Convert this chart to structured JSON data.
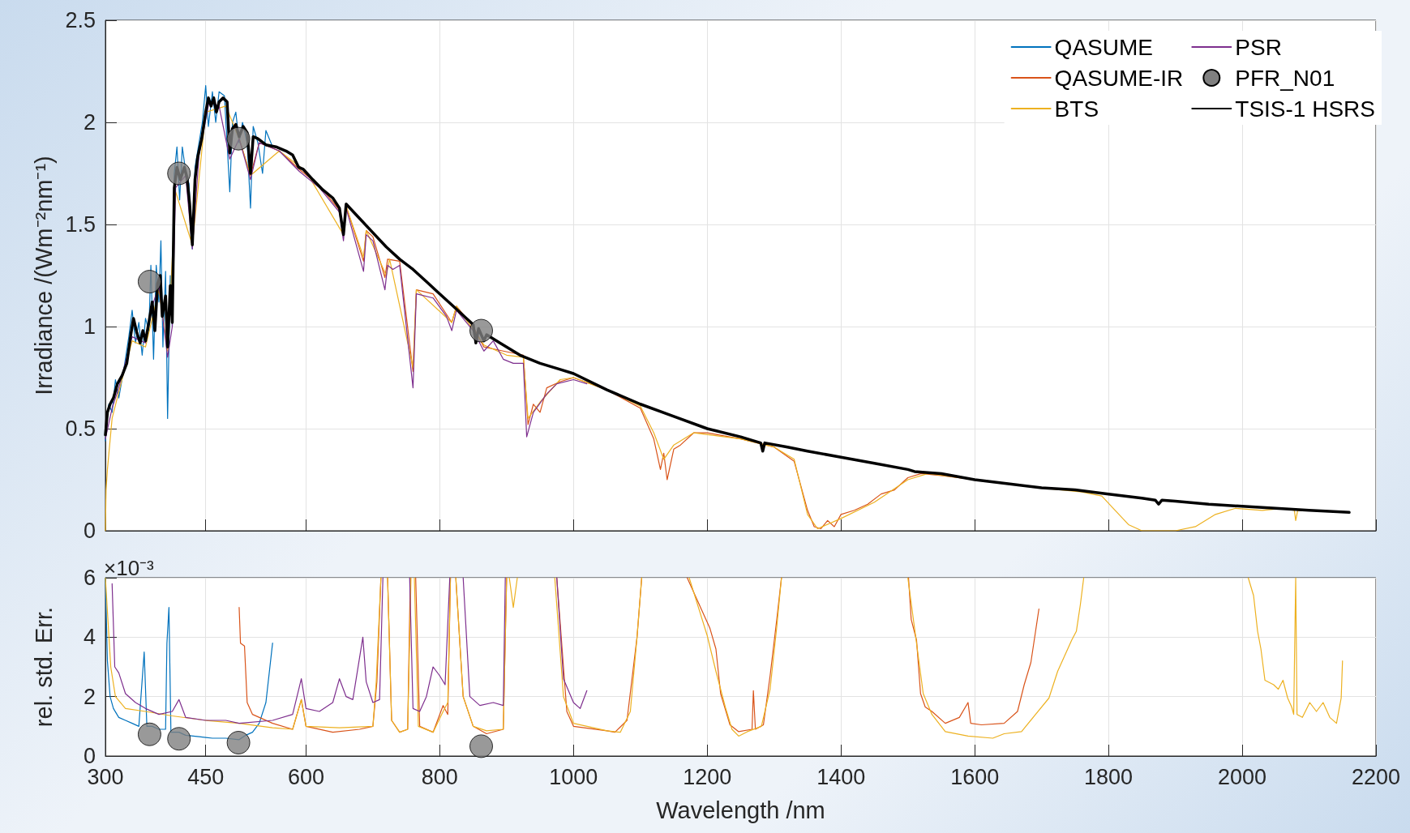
{
  "chart_data": [
    {
      "type": "line",
      "ylabel": "Irradiance /(Wm⁻²nm⁻¹)",
      "xlim": [
        300,
        2200
      ],
      "xticks": [
        300,
        450,
        600,
        800,
        1000,
        1200,
        1400,
        1600,
        1800,
        2000,
        2200
      ],
      "ylim": [
        0,
        2.5
      ],
      "yticks": [
        0,
        0.5,
        1,
        1.5,
        2,
        2.5
      ],
      "tick_labels": "y",
      "grid": true,
      "legend": "top right",
      "marker": "none",
      "series": [
        {
          "name": "QASUME",
          "color": "#0072bd",
          "x": [
            300,
            305,
            310,
            315,
            320,
            328,
            335,
            340,
            345,
            350,
            355,
            360,
            365,
            368,
            372,
            376,
            380,
            383,
            386,
            390,
            393,
            397,
            400,
            403,
            407,
            411,
            415,
            420,
            425,
            430,
            434,
            440,
            445,
            450,
            454,
            460,
            465,
            470,
            478,
            486,
            490,
            495,
            500,
            505,
            512,
            517,
            521,
            528,
            535,
            540,
            550
          ],
          "values": [
            0.44,
            0.62,
            0.58,
            0.74,
            0.65,
            0.8,
            0.95,
            1.08,
            0.92,
            1.02,
            0.86,
            1.04,
            0.98,
            1.3,
            0.84,
            1.3,
            1.12,
            1.42,
            0.9,
            1.27,
            0.55,
            1.25,
            1.0,
            1.75,
            1.88,
            1.62,
            1.88,
            1.76,
            1.7,
            1.38,
            1.78,
            1.9,
            2.0,
            2.18,
            1.98,
            2.15,
            2.0,
            2.15,
            2.13,
            1.66,
            2.0,
            2.05,
            1.9,
            2.0,
            1.9,
            1.58,
            1.98,
            1.9,
            1.75,
            1.96,
            1.88
          ]
        },
        {
          "name": "QASUME-IR",
          "color": "#d95319",
          "x": [
            500,
            517,
            530,
            560,
            590,
            620,
            650,
            656,
            660,
            686,
            690,
            700,
            718,
            722,
            740,
            760,
            765,
            790,
            818,
            825,
            850,
            866,
            895,
            925,
            932,
            940,
            950,
            960,
            980,
            1000,
            1050,
            1100,
            1120,
            1130,
            1135,
            1140,
            1150,
            1160,
            1180,
            1200,
            1250,
            1300,
            1330,
            1350,
            1360,
            1370,
            1380,
            1390,
            1400,
            1420,
            1440,
            1460,
            1480,
            1500,
            1520,
            1550,
            1600
          ],
          "values": [
            1.92,
            1.74,
            1.9,
            1.86,
            1.77,
            1.69,
            1.57,
            1.45,
            1.59,
            1.32,
            1.47,
            1.44,
            1.24,
            1.33,
            1.32,
            0.78,
            1.18,
            1.16,
            1.02,
            1.1,
            1.0,
            0.9,
            0.88,
            0.86,
            0.52,
            0.62,
            0.58,
            0.7,
            0.73,
            0.75,
            0.69,
            0.6,
            0.45,
            0.3,
            0.38,
            0.25,
            0.4,
            0.42,
            0.48,
            0.48,
            0.45,
            0.41,
            0.34,
            0.1,
            0.02,
            0.01,
            0.05,
            0.02,
            0.08,
            0.1,
            0.13,
            0.18,
            0.2,
            0.26,
            0.28,
            0.27,
            0.25
          ]
        },
        {
          "name": "BTS",
          "color": "#edb120",
          "x": [
            300,
            301,
            303,
            310,
            320,
            340,
            360,
            380,
            393,
            405,
            430,
            450,
            480,
            500,
            517,
            560,
            600,
            656,
            660,
            686,
            690,
            720,
            725,
            760,
            765,
            818,
            825,
            866,
            900,
            925,
            932,
            950,
            980,
            1000,
            1050,
            1100,
            1120,
            1135,
            1150,
            1180,
            1250,
            1300,
            1330,
            1350,
            1365,
            1400,
            1450,
            1500,
            1530,
            1600,
            1700,
            1760,
            1790,
            1810,
            1830,
            1850,
            1900,
            1930,
            1960,
            1990,
            2030,
            2060,
            2078,
            2080,
            2083,
            2120,
            2150
          ],
          "values": [
            0.0,
            0.2,
            0.3,
            0.55,
            0.68,
            0.93,
            0.9,
            1.18,
            0.88,
            1.66,
            1.4,
            2.05,
            2.08,
            1.92,
            1.74,
            1.86,
            1.76,
            1.45,
            1.59,
            1.34,
            1.47,
            1.25,
            1.33,
            0.8,
            1.18,
            1.02,
            1.1,
            0.91,
            0.86,
            0.85,
            0.55,
            0.63,
            0.74,
            0.75,
            0.69,
            0.61,
            0.48,
            0.35,
            0.42,
            0.48,
            0.45,
            0.41,
            0.35,
            0.08,
            0.01,
            0.06,
            0.14,
            0.25,
            0.28,
            0.25,
            0.21,
            0.19,
            0.17,
            0.1,
            0.03,
            0.0,
            0.0,
            0.02,
            0.08,
            0.11,
            0.1,
            0.11,
            0.1,
            0.05,
            0.1,
            0.1,
            0.09
          ]
        },
        {
          "name": "PSR",
          "color": "#7e2f8e",
          "x": [
            300,
            310,
            320,
            340,
            360,
            370,
            380,
            393,
            400,
            405,
            420,
            430,
            440,
            455,
            470,
            486,
            500,
            517,
            530,
            560,
            590,
            620,
            650,
            656,
            660,
            686,
            690,
            700,
            718,
            722,
            730,
            740,
            760,
            765,
            790,
            810,
            818,
            825,
            850,
            866,
            880,
            895,
            910,
            925,
            930,
            940,
            960,
            975,
            1000,
            1020
          ],
          "values": [
            0.45,
            0.6,
            0.7,
            0.95,
            0.92,
            1.1,
            1.2,
            0.85,
            1.0,
            1.68,
            1.74,
            1.38,
            1.84,
            2.1,
            2.08,
            1.82,
            1.92,
            1.72,
            1.9,
            1.86,
            1.76,
            1.68,
            1.56,
            1.42,
            1.58,
            1.27,
            1.45,
            1.42,
            1.18,
            1.3,
            1.28,
            1.3,
            0.7,
            1.16,
            1.14,
            1.05,
            0.98,
            1.08,
            0.98,
            0.88,
            0.93,
            0.84,
            0.82,
            0.82,
            0.46,
            0.58,
            0.67,
            0.72,
            0.74,
            0.72
          ]
        },
        {
          "name": "PFR_N01",
          "type": "scatter",
          "marker": "circle",
          "color": "#808080",
          "x": [
            366,
            410,
            499,
            862
          ],
          "values": [
            1.22,
            1.75,
            1.92,
            0.98
          ]
        },
        {
          "name": "TSIS-1 HSRS",
          "color": "#000000",
          "x": [
            300,
            303,
            307,
            312,
            318,
            325,
            332,
            338,
            342,
            347,
            352,
            356,
            360,
            365,
            370,
            374,
            378,
            382,
            385,
            390,
            393,
            397,
            400,
            403,
            407,
            412,
            418,
            422,
            426,
            430,
            434,
            438,
            444,
            450,
            454,
            458,
            462,
            466,
            470,
            476,
            482,
            486,
            490,
            495,
            500,
            506,
            512,
            517,
            521,
            528,
            540,
            555,
            570,
            580,
            589,
            596,
            610,
            625,
            640,
            650,
            656,
            660,
            680,
            700,
            720,
            740,
            760,
            780,
            800,
            820,
            840,
            850,
            854,
            858,
            866,
            870,
            890,
            920,
            950,
            980,
            1000,
            1050,
            1100,
            1150,
            1200,
            1250,
            1280,
            1283,
            1286,
            1320,
            1350,
            1400,
            1450,
            1500,
            1510,
            1550,
            1600,
            1650,
            1700,
            1750,
            1800,
            1850,
            1870,
            1875,
            1880,
            1900,
            1950,
            2000,
            2050,
            2100,
            2160
          ],
          "values": [
            0.47,
            0.58,
            0.62,
            0.65,
            0.72,
            0.76,
            0.82,
            0.96,
            1.04,
            0.97,
            0.92,
            0.98,
            0.93,
            1.02,
            1.12,
            0.98,
            1.21,
            1.25,
            1.05,
            1.15,
            0.9,
            1.2,
            1.02,
            1.68,
            1.78,
            1.72,
            1.78,
            1.73,
            1.6,
            1.4,
            1.72,
            1.83,
            1.92,
            2.05,
            2.12,
            2.08,
            2.12,
            2.05,
            2.1,
            2.12,
            2.1,
            1.85,
            1.97,
            1.99,
            1.93,
            1.98,
            1.95,
            1.75,
            1.93,
            1.92,
            1.89,
            1.88,
            1.86,
            1.84,
            1.78,
            1.77,
            1.72,
            1.67,
            1.63,
            1.58,
            1.45,
            1.6,
            1.53,
            1.46,
            1.39,
            1.33,
            1.28,
            1.22,
            1.16,
            1.1,
            1.04,
            1.01,
            0.92,
            0.99,
            0.93,
            0.96,
            0.92,
            0.86,
            0.82,
            0.79,
            0.77,
            0.69,
            0.62,
            0.56,
            0.5,
            0.46,
            0.43,
            0.39,
            0.43,
            0.41,
            0.39,
            0.36,
            0.33,
            0.3,
            0.29,
            0.28,
            0.25,
            0.23,
            0.21,
            0.2,
            0.18,
            0.16,
            0.15,
            0.13,
            0.15,
            0.145,
            0.13,
            0.12,
            0.11,
            0.1,
            0.09
          ]
        }
      ]
    },
    {
      "type": "line",
      "xlabel": "Wavelength /nm",
      "ylabel": "rel. std. Err.",
      "annotations": [
        "×10⁻³"
      ],
      "xlim": [
        300,
        2200
      ],
      "xticks": [
        300,
        450,
        600,
        800,
        1000,
        1200,
        1400,
        1600,
        1800,
        2000,
        2200
      ],
      "ylim": [
        0,
        6
      ],
      "yticks": [
        0,
        2,
        4,
        6
      ],
      "grid": true,
      "marker": "none",
      "series": [
        {
          "color": "#0072bd",
          "x": [
            300,
            303,
            307,
            312,
            320,
            330,
            340,
            350,
            358,
            362,
            370,
            380,
            390,
            392,
            395,
            398,
            410,
            420,
            440,
            460,
            480,
            500,
            510,
            520,
            530,
            540,
            545,
            550
          ],
          "values": [
            6,
            3.2,
            2.0,
            1.6,
            1.3,
            1.2,
            1.1,
            1.0,
            3.5,
            1.0,
            1.0,
            0.9,
            0.9,
            3.8,
            5.0,
            0.8,
            0.8,
            0.7,
            0.65,
            0.6,
            0.6,
            0.55,
            0.7,
            0.8,
            1.1,
            1.8,
            2.8,
            3.8
          ]
        },
        {
          "color": "#d95319",
          "x": [
            500,
            502,
            508,
            512,
            520,
            550,
            580,
            593,
            600,
            640,
            680,
            700,
            706,
            712,
            715,
            722,
            728,
            740,
            752,
            756,
            758,
            764,
            770,
            790,
            805,
            812,
            816,
            818,
            824,
            835,
            850,
            870,
            895,
            900,
            902,
            975,
            990,
            1000,
            1050,
            1062,
            1080,
            1095,
            1102,
            1104,
            1170,
            1204,
            1213,
            1220,
            1234,
            1247,
            1267,
            1269,
            1272,
            1284,
            1294,
            1304,
            1311,
            1313,
            1501,
            1505,
            1513,
            1519,
            1526,
            1536,
            1556,
            1577,
            1590,
            1594,
            1610,
            1644,
            1664,
            1674,
            1684,
            1691,
            1696
          ],
          "values": [
            5.0,
            3.8,
            3.7,
            1.8,
            1.4,
            1.1,
            0.9,
            1.9,
            1.0,
            0.8,
            0.9,
            1.0,
            2.5,
            6,
            null,
            6,
            1.2,
            0.8,
            0.9,
            6,
            null,
            6,
            1.0,
            0.8,
            1.7,
            1.4,
            6,
            null,
            6,
            2.0,
            1.0,
            0.75,
            0.9,
            6,
            null,
            6,
            1.5,
            1.0,
            0.85,
            0.8,
            1.2,
            4,
            6,
            null,
            6,
            4.3,
            3.6,
            2.1,
            1.05,
            0.82,
            0.9,
            2.2,
            0.9,
            1.05,
            2.7,
            4.6,
            6,
            null,
            6,
            4.6,
            3.9,
            2.1,
            1.65,
            1.5,
            1.1,
            1.3,
            1.8,
            1.1,
            1.05,
            1.1,
            1.5,
            2.4,
            3.15,
            4.2,
            4.95
          ]
        },
        {
          "color": "#edb120",
          "x": [
            300,
            308,
            315,
            330,
            360,
            400,
            450,
            500,
            550,
            580,
            593,
            600,
            650,
            700,
            705,
            712,
            715,
            722,
            728,
            740,
            752,
            757,
            759,
            762,
            768,
            790,
            805,
            812,
            816,
            818,
            824,
            835,
            850,
            870,
            895,
            900,
            902,
            904,
            910,
            916,
            918,
            972,
            985,
            1000,
            1050,
            1070,
            1085,
            1095,
            1102,
            1104,
            1173,
            1200,
            1213,
            1227,
            1237,
            1247,
            1260,
            1281,
            1294,
            1304,
            1311,
            1313,
            1500,
            1523,
            1536,
            1556,
            1590,
            1627,
            1644,
            1670,
            1691,
            1711,
            1724,
            1745,
            1752,
            1758,
            1763,
            1765,
            2009,
            2017,
            2023,
            2028,
            2034,
            2047,
            2054,
            2061,
            2068,
            2074,
            2077,
            2080,
            2082,
            2090,
            2101,
            2111,
            2121,
            2131,
            2141,
            2148,
            2150
          ],
          "values": [
            6,
            3.0,
            2.0,
            1.6,
            1.5,
            1.35,
            1.2,
            1.1,
            0.95,
            0.9,
            1.9,
            1.0,
            0.95,
            1.0,
            2.5,
            6,
            null,
            6,
            1.2,
            0.8,
            0.9,
            6,
            null,
            6,
            1.0,
            0.8,
            1.5,
            1.8,
            6,
            null,
            6,
            2.0,
            1.0,
            0.85,
            0.9,
            6,
            null,
            6,
            5,
            6,
            null,
            6,
            2.0,
            1.1,
            0.85,
            0.8,
            1.5,
            4,
            6,
            null,
            6,
            4.05,
            2.85,
            1.65,
            0.9,
            0.67,
            0.82,
            1.0,
            2.25,
            4.35,
            6,
            null,
            6,
            2.1,
            1.4,
            0.82,
            0.67,
            0.6,
            0.75,
            0.82,
            1.4,
            1.95,
            2.85,
            3.9,
            4.2,
            5.1,
            6,
            null,
            6,
            5.4,
            4.2,
            3.6,
            2.55,
            2.4,
            2.25,
            2.55,
            1.95,
            1.65,
            1.4,
            6,
            1.4,
            1.3,
            1.8,
            1.5,
            1.8,
            1.3,
            1.1,
            1.95,
            3.2
          ]
        },
        {
          "color": "#7e2f8e",
          "x": [
            310,
            314,
            320,
            330,
            345,
            360,
            380,
            400,
            410,
            420,
            450,
            480,
            500,
            550,
            580,
            593,
            600,
            620,
            640,
            650,
            660,
            670,
            685,
            690,
            700,
            710,
            715,
            718,
            755,
            760,
            770,
            780,
            790,
            800,
            808,
            815,
            820,
            835,
            845,
            860,
            880,
            895,
            898,
            900,
            975,
            985,
            1000,
            1010,
            1020
          ],
          "values": [
            5.8,
            3.0,
            2.8,
            2.1,
            1.8,
            1.6,
            1.4,
            1.5,
            1.9,
            1.3,
            1.2,
            1.2,
            1.1,
            1.2,
            1.4,
            2.6,
            1.6,
            1.5,
            1.8,
            2.6,
            2.0,
            1.9,
            4.0,
            2.5,
            1.8,
            1.9,
            6,
            null,
            6,
            1.6,
            1.5,
            2.0,
            3.0,
            2.7,
            2.4,
            6,
            null,
            6,
            2.0,
            1.7,
            1.8,
            1.7,
            6,
            null,
            6,
            2.6,
            1.8,
            1.6,
            2.2
          ]
        },
        {
          "type": "scatter",
          "marker": "circle",
          "color": "#808080",
          "x": [
            366,
            410,
            499,
            862
          ],
          "values": [
            0.73,
            0.58,
            0.45,
            0.33
          ]
        }
      ]
    }
  ]
}
